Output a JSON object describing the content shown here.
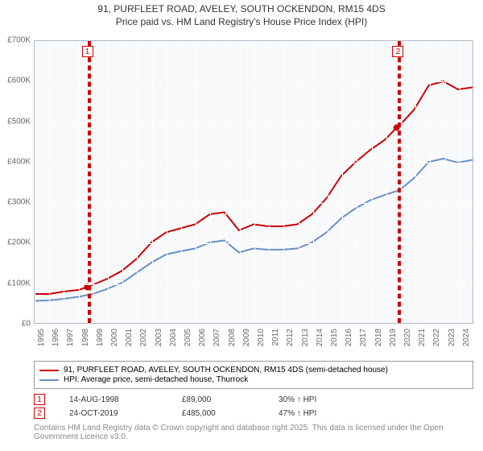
{
  "title_line1": "91, PURFLEET ROAD, AVELEY, SOUTH OCKENDON, RM15 4DS",
  "title_line2": "Price paid vs. HM Land Registry's House Price Index (HPI)",
  "chart": {
    "type": "line",
    "background_color": "#f8f9fb",
    "grid_color": "#ffffff",
    "border_color": "#b0b8c8",
    "ylim": [
      0,
      700000
    ],
    "y_ticks": [
      0,
      100000,
      200000,
      300000,
      400000,
      500000,
      600000,
      700000
    ],
    "y_tick_labels": [
      "£0",
      "£100K",
      "£200K",
      "£300K",
      "£400K",
      "£500K",
      "£600K",
      "£700K"
    ],
    "xlim": [
      1995,
      2025
    ],
    "x_ticks": [
      1995,
      1996,
      1997,
      1998,
      1999,
      2000,
      2001,
      2002,
      2003,
      2004,
      2005,
      2006,
      2007,
      2008,
      2009,
      2010,
      2011,
      2012,
      2013,
      2014,
      2015,
      2016,
      2017,
      2018,
      2019,
      2020,
      2021,
      2022,
      2023,
      2024
    ],
    "series": [
      {
        "name": "91, PURFLEET ROAD, AVELEY, SOUTH OCKENDON, RM15 4DS (semi-detached house)",
        "color": "#cc0000",
        "width": 2,
        "points": [
          [
            1995,
            72000
          ],
          [
            1996,
            72000
          ],
          [
            1997,
            78000
          ],
          [
            1998,
            82000
          ],
          [
            1998.6,
            89000
          ],
          [
            1999,
            95000
          ],
          [
            2000,
            110000
          ],
          [
            2001,
            130000
          ],
          [
            2002,
            160000
          ],
          [
            2003,
            200000
          ],
          [
            2004,
            225000
          ],
          [
            2005,
            235000
          ],
          [
            2006,
            245000
          ],
          [
            2007,
            270000
          ],
          [
            2008,
            275000
          ],
          [
            2009,
            230000
          ],
          [
            2010,
            245000
          ],
          [
            2011,
            240000
          ],
          [
            2012,
            240000
          ],
          [
            2013,
            245000
          ],
          [
            2014,
            270000
          ],
          [
            2015,
            310000
          ],
          [
            2016,
            365000
          ],
          [
            2017,
            400000
          ],
          [
            2018,
            430000
          ],
          [
            2019,
            455000
          ],
          [
            2019.8,
            485000
          ],
          [
            2020,
            490000
          ],
          [
            2021,
            530000
          ],
          [
            2022,
            590000
          ],
          [
            2023,
            600000
          ],
          [
            2024,
            580000
          ],
          [
            2025,
            585000
          ]
        ]
      },
      {
        "name": "HPI: Average price, semi-detached house, Thurrock",
        "color": "#6a8fc7",
        "width": 2,
        "points": [
          [
            1995,
            55000
          ],
          [
            1996,
            56000
          ],
          [
            1997,
            60000
          ],
          [
            1998,
            65000
          ],
          [
            1999,
            72000
          ],
          [
            2000,
            85000
          ],
          [
            2001,
            100000
          ],
          [
            2002,
            125000
          ],
          [
            2003,
            150000
          ],
          [
            2004,
            170000
          ],
          [
            2005,
            178000
          ],
          [
            2006,
            185000
          ],
          [
            2007,
            200000
          ],
          [
            2008,
            205000
          ],
          [
            2009,
            175000
          ],
          [
            2010,
            185000
          ],
          [
            2011,
            182000
          ],
          [
            2012,
            182000
          ],
          [
            2013,
            185000
          ],
          [
            2014,
            200000
          ],
          [
            2015,
            225000
          ],
          [
            2016,
            260000
          ],
          [
            2017,
            285000
          ],
          [
            2018,
            305000
          ],
          [
            2019,
            318000
          ],
          [
            2020,
            330000
          ],
          [
            2021,
            360000
          ],
          [
            2022,
            400000
          ],
          [
            2023,
            408000
          ],
          [
            2024,
            398000
          ],
          [
            2025,
            405000
          ]
        ]
      }
    ],
    "markers": [
      {
        "num": "1",
        "x": 1998.6,
        "y": 89000,
        "color": "#cc0000"
      },
      {
        "num": "2",
        "x": 2019.8,
        "y": 485000,
        "color": "#cc0000"
      }
    ]
  },
  "sales": [
    {
      "num": "1",
      "date": "14-AUG-1998",
      "price": "£89,000",
      "pct": "30% ↑ HPI",
      "color": "#cc0000"
    },
    {
      "num": "2",
      "date": "24-OCT-2019",
      "price": "£485,000",
      "pct": "47% ↑ HPI",
      "color": "#cc0000"
    }
  ],
  "credit": "Contains HM Land Registry data © Crown copyright and database right 2025.\nThis data is licensed under the Open Government Licence v3.0."
}
